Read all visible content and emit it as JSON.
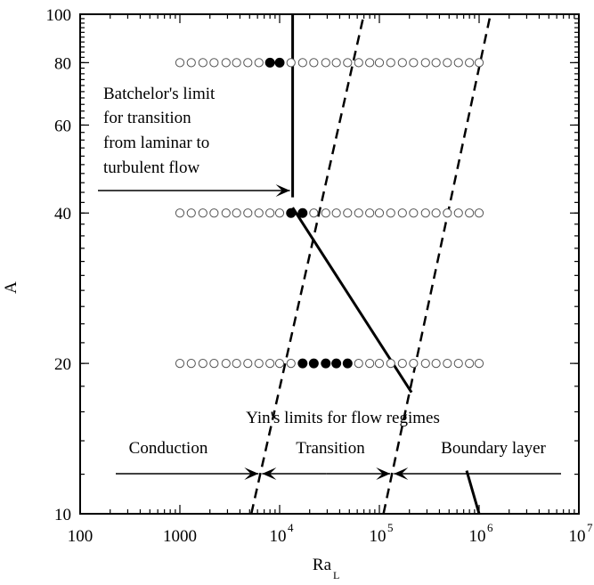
{
  "chart_data": {
    "type": "scatter",
    "xlabel_main": "Ra",
    "xlabel_sub": "L",
    "ylabel": "A",
    "x_scale": "log",
    "y_scale": "log",
    "xlim": [
      100,
      10000000
    ],
    "ylim": [
      10,
      100
    ],
    "grid": false,
    "x_ticks": [
      {
        "value": 100,
        "base": "100",
        "exp": ""
      },
      {
        "value": 1000,
        "base": "1000",
        "exp": ""
      },
      {
        "value": 10000,
        "base": "10",
        "exp": "4"
      },
      {
        "value": 100000,
        "base": "10",
        "exp": "5"
      },
      {
        "value": 1000000,
        "base": "10",
        "exp": "6"
      },
      {
        "value": 10000000,
        "base": "10",
        "exp": "7"
      }
    ],
    "y_ticks": [
      {
        "value": 10,
        "label": "10"
      },
      {
        "value": 20,
        "label": "20"
      },
      {
        "value": 40,
        "label": "40"
      },
      {
        "value": 60,
        "label": "60"
      },
      {
        "value": 80,
        "label": "80"
      },
      {
        "value": 100,
        "label": "100"
      }
    ],
    "data_rows": [
      {
        "A": 80,
        "open_x": [
          1000,
          1300,
          1700,
          2200,
          2900,
          3700,
          4800,
          6200,
          13000,
          17000,
          22000,
          29000,
          37000,
          48000,
          62000,
          80000,
          100000,
          130000,
          170000,
          220000,
          290000,
          370000,
          480000,
          620000,
          800000,
          1000000
        ],
        "filled_x": [
          8000,
          10000
        ]
      },
      {
        "A": 40,
        "open_x": [
          1000,
          1300,
          1700,
          2200,
          2900,
          3700,
          4800,
          6200,
          8000,
          10000,
          22000,
          29000,
          37000,
          48000,
          62000,
          80000,
          100000,
          130000,
          170000,
          220000,
          290000,
          370000,
          480000,
          620000,
          800000,
          1000000
        ],
        "filled_x": [
          13000,
          17000
        ]
      },
      {
        "A": 20,
        "open_x": [
          1000,
          1300,
          1700,
          2200,
          2900,
          3700,
          4800,
          6200,
          8000,
          10000,
          13000,
          62000,
          80000,
          100000,
          130000,
          170000,
          220000,
          290000,
          370000,
          480000,
          620000,
          800000,
          1000000
        ],
        "filled_x": [
          17000,
          22000,
          29000,
          37000,
          48000
        ]
      }
    ],
    "lines": [
      {
        "style": "solid",
        "points": [
          [
            13500,
            100
          ],
          [
            13500,
            43
          ]
        ]
      },
      {
        "style": "solid",
        "points": [
          [
            13500,
            41
          ],
          [
            210000,
            17.5
          ]
        ]
      },
      {
        "style": "solid",
        "points": [
          [
            750000,
            12.2
          ],
          [
            1000000,
            10
          ]
        ]
      },
      {
        "style": "dashed",
        "points": [
          [
            5200,
            10
          ],
          [
            70000,
            100
          ]
        ]
      },
      {
        "style": "dashed",
        "points": [
          [
            110000,
            10
          ],
          [
            1300000,
            100
          ]
        ]
      }
    ],
    "annotations": {
      "batchelor": [
        "Batchelor's limit",
        "for transition",
        "from laminar to",
        "turbulent flow"
      ],
      "yin_title": "Yin's limits for flow regimes",
      "conduction": "Conduction",
      "transition": "Transition",
      "boundary_layer": "Boundary layer"
    }
  }
}
